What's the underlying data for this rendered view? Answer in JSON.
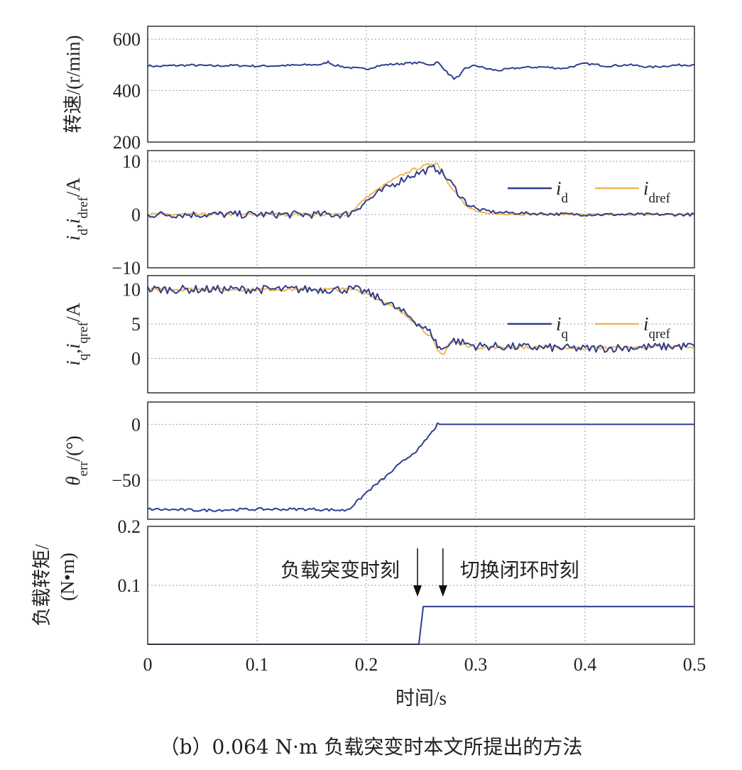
{
  "caption": "（b）0.064 N·m 负载突变时本文所提出的方法",
  "xlabel": "时间/s",
  "colors": {
    "blue": "#2f3f8f",
    "orange": "#f0b659",
    "grid": "#9a9a9a"
  },
  "chart_data": [
    {
      "type": "line",
      "ylabel": "转速/(r/min)",
      "ylim": [
        200,
        650
      ],
      "yticks": [
        "200",
        "400",
        "600"
      ],
      "xlim": [
        0,
        0.5
      ],
      "series": [
        {
          "color": "#2f3f8f",
          "x": [
            0,
            0.01,
            0.02,
            0.04,
            0.06,
            0.08,
            0.1,
            0.12,
            0.14,
            0.16,
            0.165,
            0.17,
            0.18,
            0.19,
            0.2,
            0.21,
            0.22,
            0.24,
            0.25,
            0.26,
            0.265,
            0.27,
            0.275,
            0.28,
            0.285,
            0.29,
            0.3,
            0.31,
            0.32,
            0.34,
            0.36,
            0.38,
            0.4,
            0.42,
            0.44,
            0.46,
            0.48,
            0.5
          ],
          "y": [
            497,
            494,
            497,
            499,
            496,
            498,
            495,
            497,
            499,
            502,
            512,
            500,
            492,
            487,
            484,
            496,
            501,
            507,
            508,
            500,
            510,
            490,
            465,
            448,
            453,
            486,
            498,
            485,
            478,
            489,
            492,
            486,
            505,
            496,
            500,
            491,
            498,
            501
          ]
        }
      ]
    },
    {
      "type": "line",
      "ylabel": "id,idref/A",
      "ylim": [
        -10,
        12
      ],
      "yticks": [
        "−10",
        "0",
        "10"
      ],
      "xlim": [
        0,
        0.5
      ],
      "legend": {
        "placement": "top-right",
        "entries": [
          "id",
          "idref"
        ]
      },
      "series": [
        {
          "color": "#f0b659",
          "x": [
            0,
            0.18,
            0.185,
            0.2,
            0.22,
            0.24,
            0.26,
            0.265,
            0.275,
            0.29,
            0.3,
            0.32,
            0.35,
            0.4,
            0.45,
            0.5
          ],
          "y": [
            0,
            0,
            0.3,
            3.2,
            6,
            8.2,
            9.6,
            9.6,
            6,
            1.8,
            0.5,
            0.1,
            0,
            0,
            0,
            0
          ]
        },
        {
          "color": "#2f3f8f",
          "x": [
            0,
            0.18,
            0.185,
            0.2,
            0.22,
            0.24,
            0.26,
            0.265,
            0.275,
            0.29,
            0.3,
            0.32,
            0.35,
            0.4,
            0.45,
            0.5
          ],
          "y": [
            0,
            0,
            0.2,
            2.5,
            5.2,
            7.3,
            8.6,
            8.7,
            6.5,
            2.5,
            1,
            0.4,
            0.2,
            0,
            0,
            0
          ]
        }
      ]
    },
    {
      "type": "line",
      "ylabel": "iq,iqref/A",
      "ylim": [
        -5,
        12
      ],
      "yticks": [
        "0",
        "5",
        "10"
      ],
      "xlim": [
        0,
        0.5
      ],
      "legend": {
        "placement": "top-right",
        "entries": [
          "iq",
          "iqref"
        ]
      },
      "series": [
        {
          "color": "#f0b659",
          "x": [
            0,
            0.19,
            0.2,
            0.22,
            0.24,
            0.26,
            0.265,
            0.27,
            0.275,
            0.28,
            0.29,
            0.3,
            0.35,
            0.4,
            0.45,
            0.5
          ],
          "y": [
            10,
            10,
            9.5,
            7.8,
            5.8,
            3,
            1,
            0.5,
            2,
            2.4,
            2,
            1.6,
            1.6,
            1.5,
            1.6,
            1.7
          ]
        },
        {
          "color": "#2f3f8f",
          "x": [
            0,
            0.19,
            0.2,
            0.22,
            0.24,
            0.26,
            0.265,
            0.27,
            0.275,
            0.28,
            0.29,
            0.3,
            0.35,
            0.4,
            0.45,
            0.5
          ],
          "y": [
            10,
            10,
            9.6,
            8,
            6,
            3.5,
            1.8,
            1.2,
            2.2,
            2.6,
            2.2,
            1.8,
            1.6,
            1.4,
            1.6,
            1.8
          ]
        }
      ]
    },
    {
      "type": "line",
      "ylabel": "θerr/(°)",
      "ylim": [
        -85,
        20
      ],
      "yticks": [
        "−50",
        "0"
      ],
      "xlim": [
        0,
        0.5
      ],
      "series": [
        {
          "color": "#2f3f8f",
          "x": [
            0,
            0.05,
            0.1,
            0.15,
            0.18,
            0.185,
            0.195,
            0.2,
            0.21,
            0.22,
            0.23,
            0.24,
            0.25,
            0.255,
            0.26,
            0.265,
            0.5
          ],
          "y": [
            -76,
            -77,
            -76,
            -76,
            -77,
            -75,
            -66,
            -61,
            -53,
            -45,
            -36,
            -28,
            -20,
            -13,
            -7,
            0,
            0
          ]
        }
      ]
    },
    {
      "type": "line",
      "ylabel": "负载转矩/(N•m)",
      "ylim": [
        0,
        0.2
      ],
      "yticks": [
        "0.1",
        "0.2"
      ],
      "xlim": [
        0,
        0.5
      ],
      "xticks": [
        "0",
        "0.1",
        "0.2",
        "0.3",
        "0.4",
        "0.5"
      ],
      "annotations": [
        {
          "text": "负载突变时刻",
          "x": 0.25
        },
        {
          "text": "切换闭环时刻",
          "x": 0.27
        }
      ],
      "series": [
        {
          "color": "#2f3f8f",
          "x": [
            0,
            0.248,
            0.252,
            0.5
          ],
          "y": [
            0,
            0,
            0.064,
            0.064
          ]
        }
      ]
    }
  ]
}
